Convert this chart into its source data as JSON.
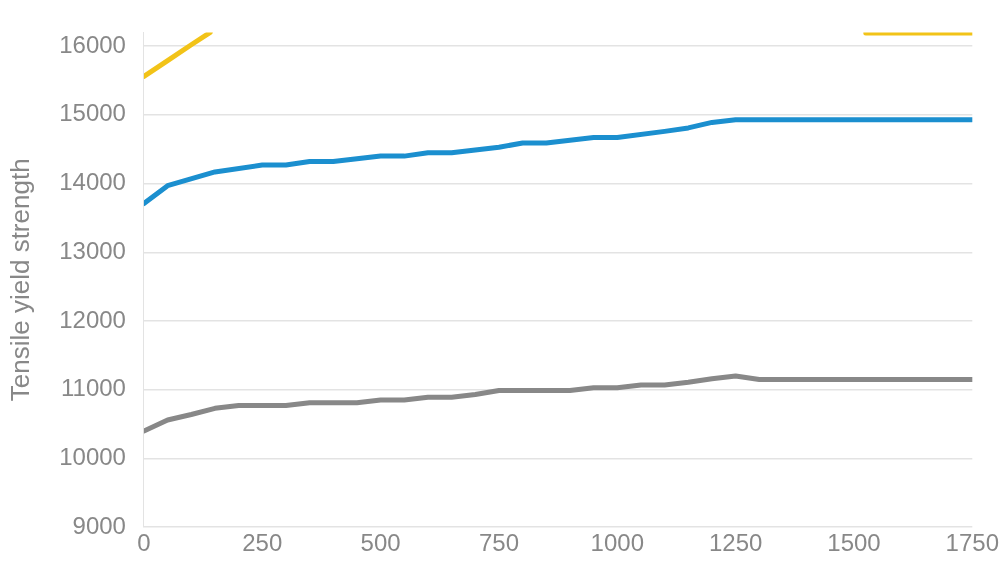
{
  "chart_data": {
    "type": "line",
    "ylabel": "Tensile yield strength",
    "xlim": [
      0,
      1750
    ],
    "xticks": [
      0,
      250,
      500,
      750,
      1000,
      1250,
      1500,
      1750
    ],
    "ylim": [
      9000,
      16200
    ],
    "yticks": [
      9000,
      10000,
      11000,
      12000,
      13000,
      14000,
      15000,
      16000
    ],
    "grid": "y",
    "legend": false,
    "marker": "none",
    "line_style": "solid",
    "series": [
      {
        "color": "#f2c318",
        "x": [
          0,
          50,
          100,
          140,
          800,
          1525,
          1750
        ],
        "values": [
          15560,
          15790,
          16020,
          16200,
          null,
          16190,
          16190
        ]
      },
      {
        "color": "#1b8fcf",
        "x": [
          0,
          50,
          150,
          250,
          300,
          350,
          400,
          500,
          550,
          600,
          650,
          750,
          800,
          850,
          950,
          1000,
          1100,
          1150,
          1200,
          1250,
          1750
        ],
        "values": [
          13710,
          13970,
          14170,
          14270,
          14270,
          14320,
          14320,
          14400,
          14400,
          14450,
          14450,
          14530,
          14590,
          14590,
          14670,
          14670,
          14760,
          14810,
          14890,
          14930,
          14930
        ]
      },
      {
        "color": "#888888",
        "x": [
          0,
          50,
          100,
          150,
          200,
          300,
          350,
          450,
          500,
          550,
          600,
          650,
          700,
          750,
          900,
          950,
          1000,
          1050,
          1100,
          1150,
          1200,
          1250,
          1300,
          1750
        ],
        "values": [
          10400,
          10560,
          10640,
          10730,
          10770,
          10770,
          10810,
          10810,
          10850,
          10850,
          10890,
          10890,
          10930,
          10990,
          10990,
          11030,
          11030,
          11070,
          11070,
          11110,
          11160,
          11200,
          11150,
          11150
        ]
      }
    ]
  }
}
